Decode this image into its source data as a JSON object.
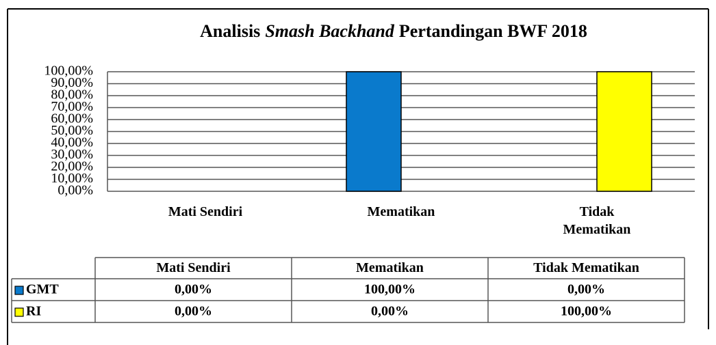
{
  "chart_data": {
    "type": "bar",
    "title": [
      "Analisis",
      "Smash Backhand",
      "Pertandingan BWF 2018"
    ],
    "categories": [
      "Mati Sendiri",
      "Mematikan",
      "Tidak Mematikan"
    ],
    "series": [
      {
        "name": "GMT",
        "color": "#0a7acc",
        "values": [
          0,
          100,
          0
        ],
        "value_labels": [
          "0,00%",
          "100,00%",
          "0,00%"
        ]
      },
      {
        "name": "RI",
        "color": "#ffff00",
        "values": [
          0,
          0,
          100
        ],
        "value_labels": [
          "0,00%",
          "0,00%",
          "100,00%"
        ]
      }
    ],
    "ylim": [
      0,
      100
    ],
    "yticks": [
      {
        "value": 0,
        "label": "0,00%"
      },
      {
        "value": 10,
        "label": "10,00%"
      },
      {
        "value": 20,
        "label": "20,00%"
      },
      {
        "value": 30,
        "label": "30,00%"
      },
      {
        "value": 40,
        "label": "40,00%"
      },
      {
        "value": 50,
        "label": "50,00%"
      },
      {
        "value": 60,
        "label": "60,00%"
      },
      {
        "value": 70,
        "label": "70,00%"
      },
      {
        "value": 80,
        "label": "80,00%"
      },
      {
        "value": 90,
        "label": "90,00%"
      },
      {
        "value": 100,
        "label": "100,00%"
      }
    ],
    "grid": true
  }
}
